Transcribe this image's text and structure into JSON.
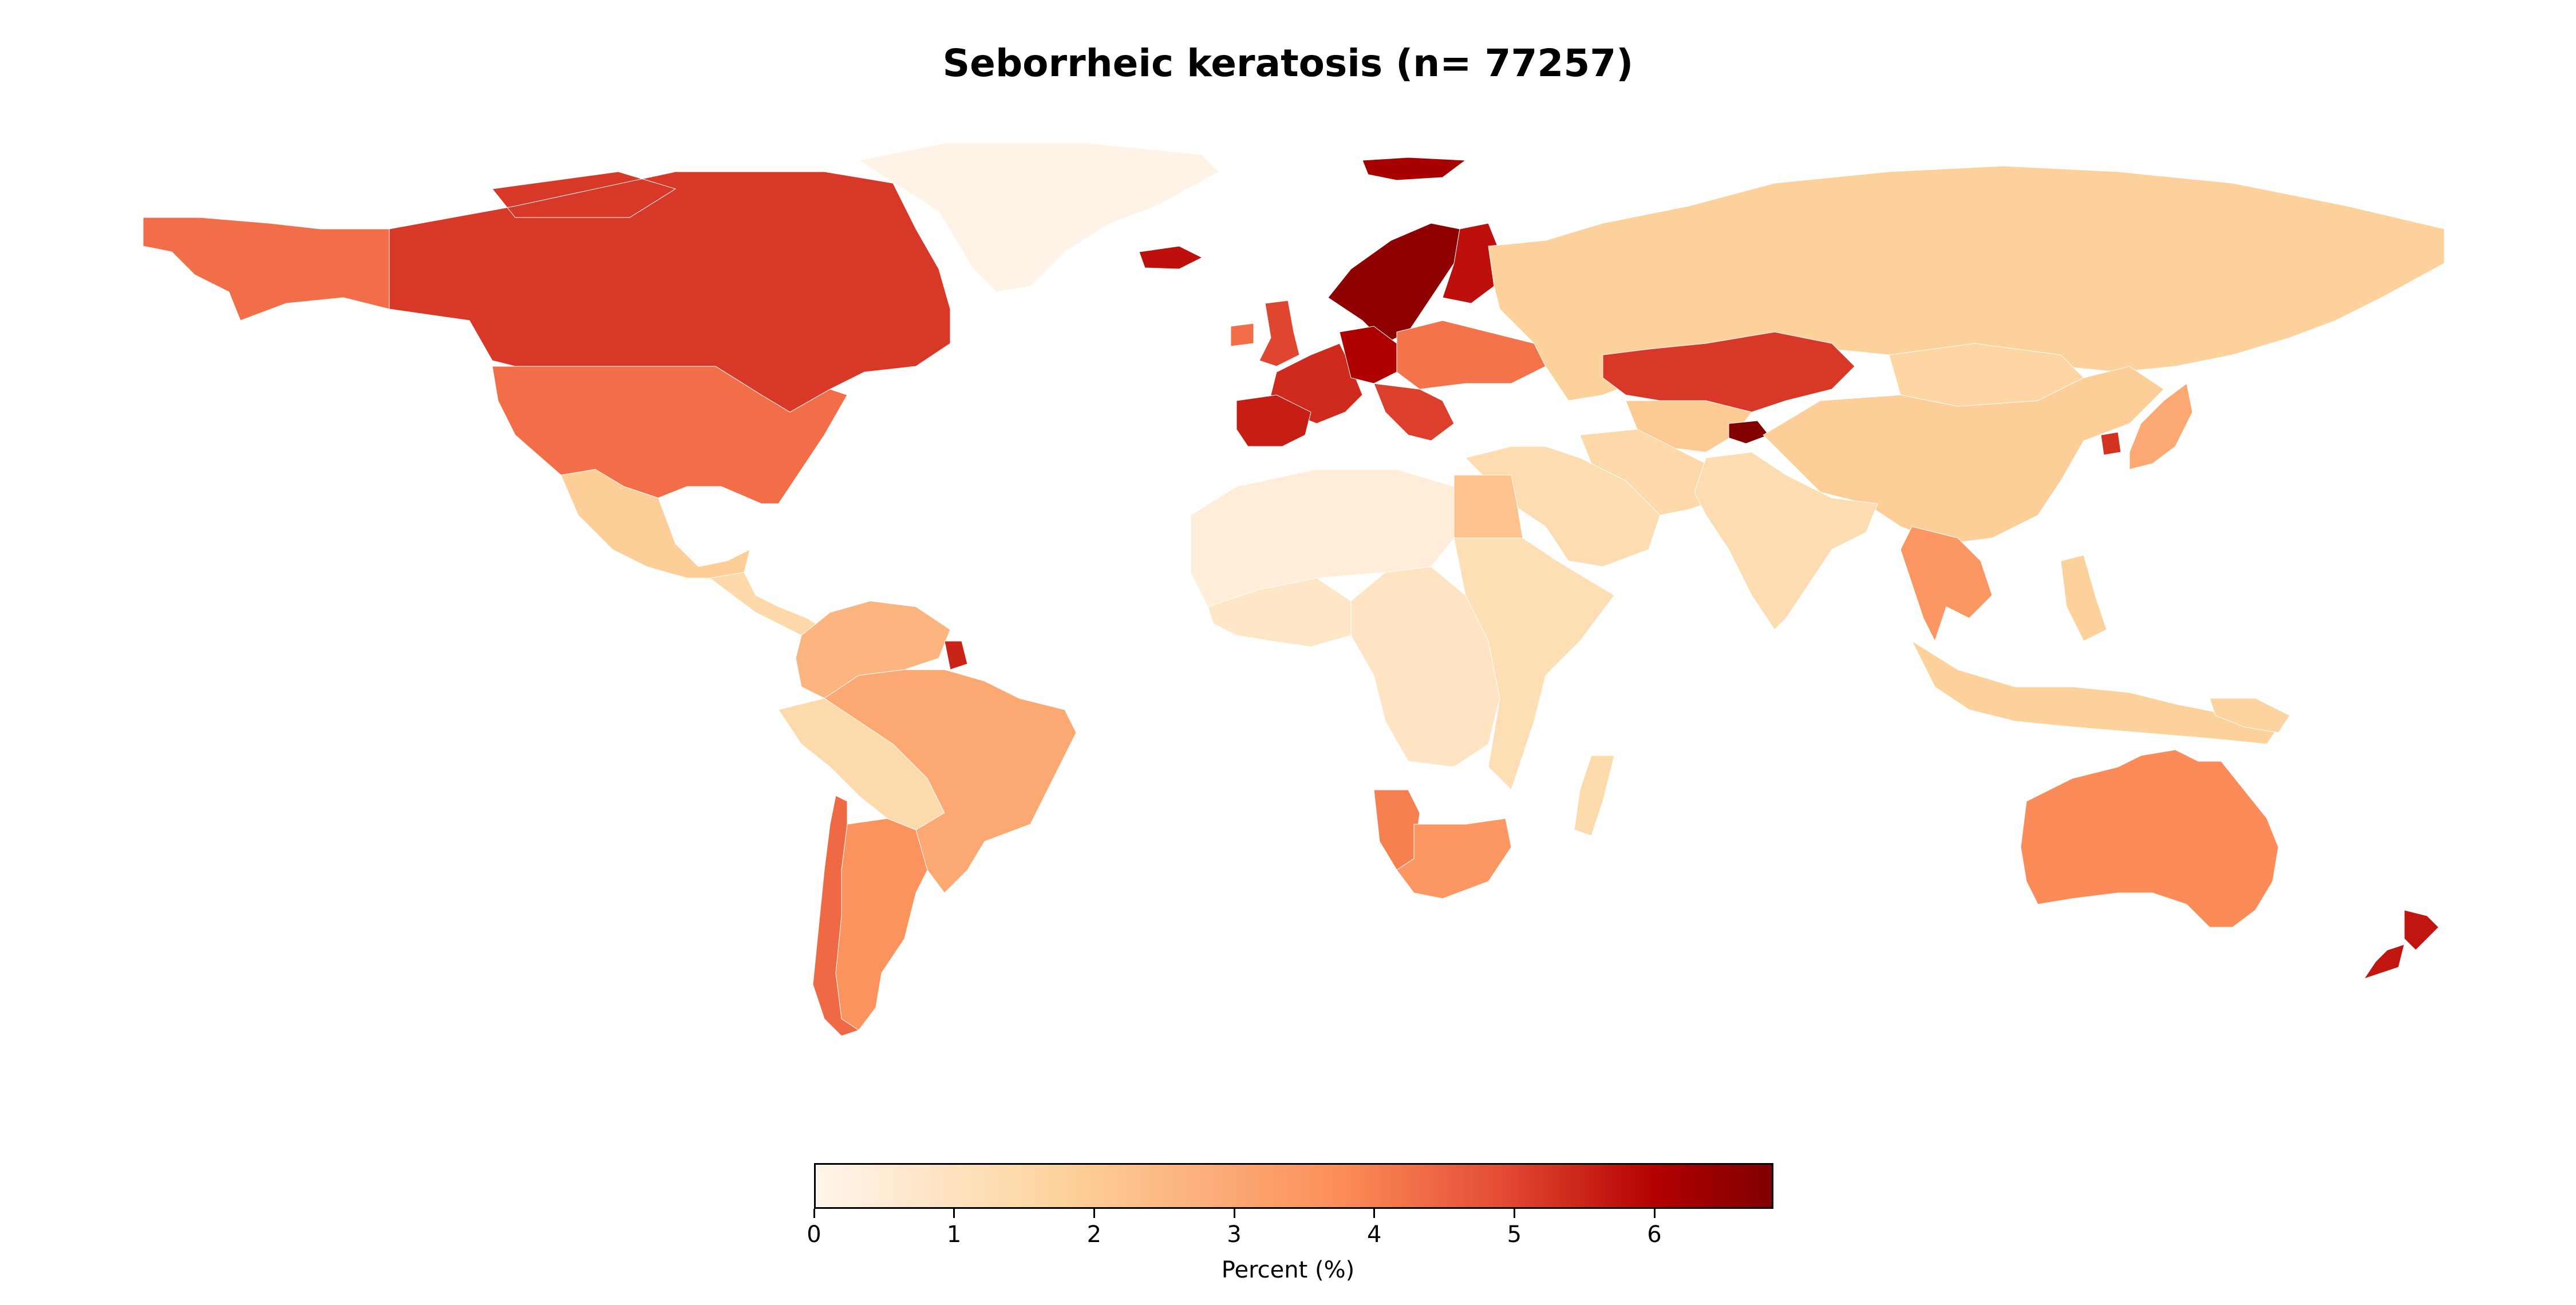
{
  "title": "Seborrheic keratosis (n= 77257)",
  "colorbar": {
    "label": "Percent (%)",
    "min": 0,
    "max": 6.85,
    "ticks": [
      "0",
      "1",
      "2",
      "3",
      "4",
      "5",
      "6"
    ],
    "colors": [
      "#fff5eb",
      "#fdd49e",
      "#fc8d59",
      "#e34a33",
      "#b30000",
      "#7f0000"
    ]
  },
  "chart_data": {
    "type": "heatmap",
    "title": "Seborrheic keratosis (n= 77257)",
    "value_label": "Percent (%)",
    "range": [
      0,
      6.85
    ],
    "regions": [
      {
        "name": "Canada",
        "value": 5.2
      },
      {
        "name": "Alaska",
        "value": 4.3
      },
      {
        "name": "United States",
        "value": 4.3
      },
      {
        "name": "Greenland",
        "value": 0.1
      },
      {
        "name": "Mexico",
        "value": 1.9
      },
      {
        "name": "Central America",
        "value": 1.5
      },
      {
        "name": "Colombia/Venezuela",
        "value": 2.6
      },
      {
        "name": "Peru/Bolivia",
        "value": 1.4
      },
      {
        "name": "Brazil",
        "value": 3.0
      },
      {
        "name": "French Guiana",
        "value": 5.5
      },
      {
        "name": "Argentina",
        "value": 3.6
      },
      {
        "name": "Chile",
        "value": 4.4
      },
      {
        "name": "Iceland",
        "value": 5.8
      },
      {
        "name": "Svalbard",
        "value": 6.2
      },
      {
        "name": "Scandinavia",
        "value": 6.6
      },
      {
        "name": "Finland",
        "value": 5.8
      },
      {
        "name": "United Kingdom",
        "value": 5.0
      },
      {
        "name": "Ireland",
        "value": 4.3
      },
      {
        "name": "Western Europe",
        "value": 5.4
      },
      {
        "name": "Germany",
        "value": 6.1
      },
      {
        "name": "Iberia",
        "value": 5.6
      },
      {
        "name": "Eastern Europe",
        "value": 4.2
      },
      {
        "name": "Balkans",
        "value": 5.1
      },
      {
        "name": "Russia",
        "value": 1.8
      },
      {
        "name": "Kazakhstan",
        "value": 5.2
      },
      {
        "name": "Central Asia",
        "value": 2.0
      },
      {
        "name": "Tajikistan",
        "value": 6.8
      },
      {
        "name": "Mongolia",
        "value": 1.6
      },
      {
        "name": "China",
        "value": 1.9
      },
      {
        "name": "Middle East",
        "value": 1.3
      },
      {
        "name": "Iran",
        "value": 1.5
      },
      {
        "name": "India",
        "value": 1.3
      },
      {
        "name": "Southeast Asia",
        "value": 3.5
      },
      {
        "name": "Japan",
        "value": 3.0
      },
      {
        "name": "South Korea",
        "value": 5.3
      },
      {
        "name": "Indonesia",
        "value": 1.8
      },
      {
        "name": "Philippines",
        "value": 1.8
      },
      {
        "name": "North Africa",
        "value": 0.4
      },
      {
        "name": "Egypt",
        "value": 2.2
      },
      {
        "name": "West Africa",
        "value": 0.8
      },
      {
        "name": "Central Africa",
        "value": 0.9
      },
      {
        "name": "East Africa",
        "value": 1.2
      },
      {
        "name": "Namibia",
        "value": 4.0
      },
      {
        "name": "South Africa",
        "value": 3.5
      },
      {
        "name": "Madagascar",
        "value": 1.4
      },
      {
        "name": "Australia",
        "value": 3.8
      },
      {
        "name": "New Zealand",
        "value": 5.7
      },
      {
        "name": "Papua New Guinea",
        "value": 1.7
      }
    ]
  }
}
